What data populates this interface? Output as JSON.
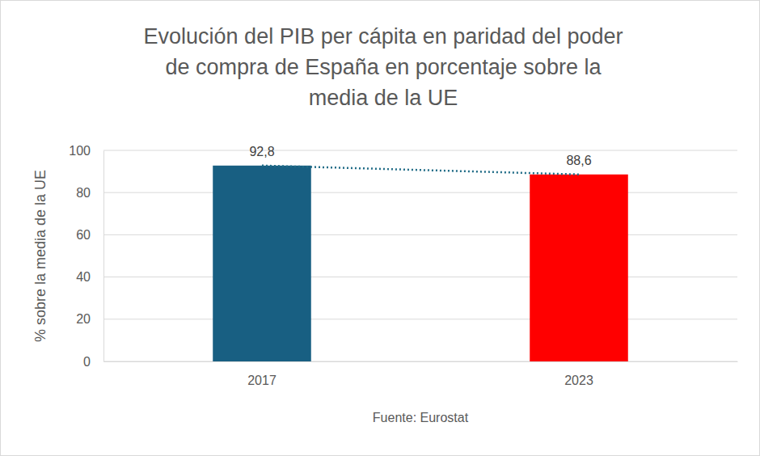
{
  "chart_data": {
    "type": "bar",
    "title": "Evolución del PIB per cápita en paridad del poder\nde compra de España en porcentaje sobre la\nmedia de la UE",
    "ylabel": "% sobre la media de la UE",
    "annotations": [
      "Fuente: Eurostat"
    ],
    "categories": [
      "2017",
      "2023"
    ],
    "values": [
      92.8,
      88.6
    ],
    "value_labels": [
      "92,8",
      "88,6"
    ],
    "colors": [
      "#185f82",
      "#ff0000"
    ],
    "ylim": [
      0,
      100
    ],
    "yticks": [
      0,
      20,
      40,
      60,
      80,
      100
    ],
    "grid": true,
    "data_labels": true,
    "line_style": "dotted"
  }
}
